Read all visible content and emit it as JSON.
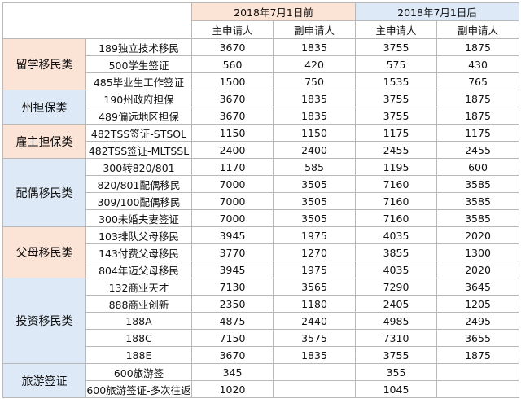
{
  "header": {
    "period_before": "2018年7月1日前",
    "period_after": "2018年7月1日后",
    "main_applicant": "主申请人",
    "secondary_applicant": "副申请人"
  },
  "colors": {
    "orange_fill": "#fbe3d6",
    "blue_fill": "#dde9f6",
    "border": "#b8b8b8"
  },
  "groups": [
    {
      "category": "留学移民类",
      "color": "orange",
      "rows": [
        {
          "visa": "189独立技术移民",
          "before_main": "3670",
          "before_sec": "1835",
          "after_main": "3755",
          "after_sec": "1875"
        },
        {
          "visa": "500学生签证",
          "before_main": "560",
          "before_sec": "420",
          "after_main": "575",
          "after_sec": "430"
        },
        {
          "visa": "485毕业生工作签证",
          "before_main": "1500",
          "before_sec": "750",
          "after_main": "1535",
          "after_sec": "765"
        }
      ]
    },
    {
      "category": "州担保类",
      "color": "blue",
      "rows": [
        {
          "visa": "190州政府担保",
          "before_main": "3670",
          "before_sec": "1835",
          "after_main": "3755",
          "after_sec": "1875"
        },
        {
          "visa": "489偏远地区担保",
          "before_main": "3670",
          "before_sec": "1835",
          "after_main": "3755",
          "after_sec": "1875"
        }
      ]
    },
    {
      "category": "雇主担保类",
      "color": "orange",
      "rows": [
        {
          "visa": "482TSS签证-STSOL",
          "before_main": "1150",
          "before_sec": "1150",
          "after_main": "1175",
          "after_sec": "1175"
        },
        {
          "visa": "482TSS签证-MLTSSL",
          "before_main": "2400",
          "before_sec": "2400",
          "after_main": "2455",
          "after_sec": "2455"
        }
      ]
    },
    {
      "category": "配偶移民类",
      "color": "blue",
      "rows": [
        {
          "visa": "300转820/801",
          "before_main": "1170",
          "before_sec": "585",
          "after_main": "1195",
          "after_sec": "600"
        },
        {
          "visa": "820/801配偶移民",
          "before_main": "7000",
          "before_sec": "3505",
          "after_main": "7160",
          "after_sec": "3585"
        },
        {
          "visa": "309/100配偶移民",
          "before_main": "7000",
          "before_sec": "3505",
          "after_main": "7160",
          "after_sec": "3585"
        },
        {
          "visa": "300未婚夫妻签证",
          "before_main": "7000",
          "before_sec": "3505",
          "after_main": "7160",
          "after_sec": "3585"
        }
      ]
    },
    {
      "category": "父母移民类",
      "color": "orange",
      "rows": [
        {
          "visa": "103排队父母移民",
          "before_main": "3945",
          "before_sec": "1975",
          "after_main": "4035",
          "after_sec": "2020"
        },
        {
          "visa": "143付费父母移民",
          "before_main": "3770",
          "before_sec": "1270",
          "after_main": "3855",
          "after_sec": "1300"
        },
        {
          "visa": "804年迈父母移民",
          "before_main": "3945",
          "before_sec": "1975",
          "after_main": "4035",
          "after_sec": "2020"
        }
      ]
    },
    {
      "category": "投资移民类",
      "color": "blue",
      "rows": [
        {
          "visa": "132商业天才",
          "before_main": "7130",
          "before_sec": "3565",
          "after_main": "7290",
          "after_sec": "3645"
        },
        {
          "visa": "888商业创新",
          "before_main": "2350",
          "before_sec": "1180",
          "after_main": "2405",
          "after_sec": "1205"
        },
        {
          "visa": "188A",
          "before_main": "4875",
          "before_sec": "2440",
          "after_main": "4985",
          "after_sec": "2495"
        },
        {
          "visa": "188C",
          "before_main": "7150",
          "before_sec": "3575",
          "after_main": "7310",
          "after_sec": "3655"
        },
        {
          "visa": "188E",
          "before_main": "3670",
          "before_sec": "1835",
          "after_main": "3755",
          "after_sec": "1875"
        }
      ]
    },
    {
      "category": "旅游签证",
      "color": "blue",
      "rows": [
        {
          "visa": "600旅游签",
          "before_main": "345",
          "before_sec": "",
          "after_main": "355",
          "after_sec": ""
        },
        {
          "visa": "600旅游签证-多次往返",
          "before_main": "1020",
          "before_sec": "",
          "after_main": "1045",
          "after_sec": ""
        }
      ]
    }
  ]
}
